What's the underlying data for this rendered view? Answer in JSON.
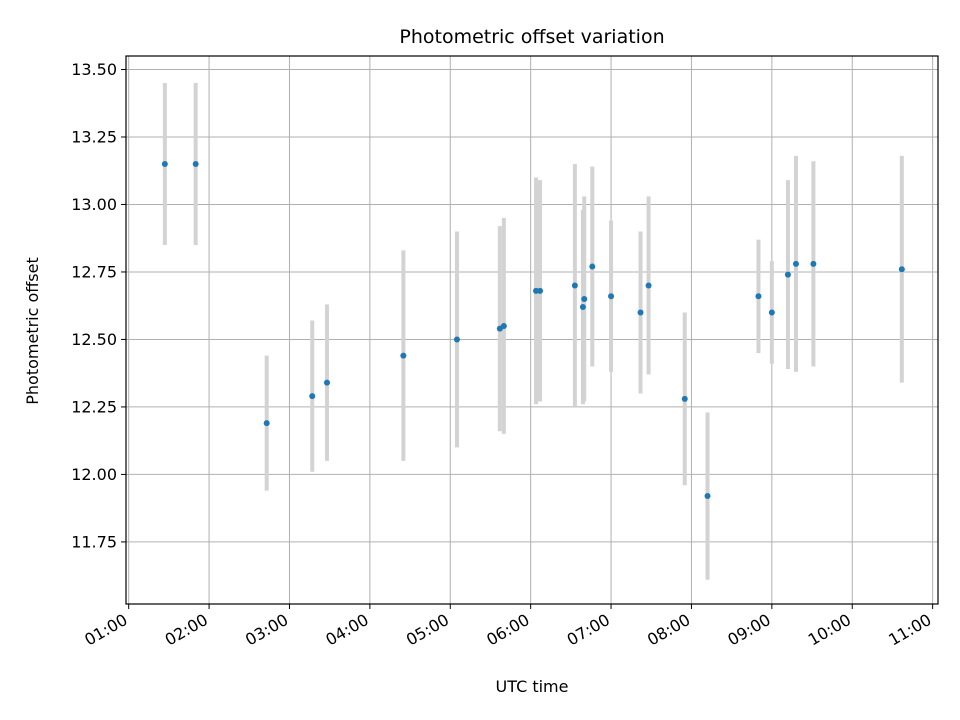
{
  "chart_data": {
    "type": "scatter",
    "title": "Photometric offset variation",
    "xlabel": "UTC time",
    "ylabel": "Photometric offset",
    "x_axis_kind": "time",
    "xlim": [
      "00:58",
      "11:04"
    ],
    "ylim": [
      11.52,
      13.55
    ],
    "x_ticks": [
      "01:00",
      "02:00",
      "03:00",
      "04:00",
      "05:00",
      "06:00",
      "07:00",
      "08:00",
      "09:00",
      "10:00",
      "11:00"
    ],
    "y_ticks": [
      11.75,
      12.0,
      12.25,
      12.5,
      12.75,
      13.0,
      13.25,
      13.5
    ],
    "y_tick_labels": [
      "11.75",
      "12.00",
      "12.25",
      "12.50",
      "12.75",
      "13.00",
      "13.25",
      "13.50"
    ],
    "grid": true,
    "point_color": "#1f77b4",
    "errorbar_color": "#d3d3d3",
    "points": [
      {
        "x": "01:27",
        "y": 13.15,
        "err": 0.3
      },
      {
        "x": "01:50",
        "y": 13.15,
        "err": 0.3
      },
      {
        "x": "02:43",
        "y": 12.19,
        "err": 0.25
      },
      {
        "x": "03:17",
        "y": 12.29,
        "err": 0.28
      },
      {
        "x": "03:28",
        "y": 12.34,
        "err": 0.29
      },
      {
        "x": "04:25",
        "y": 12.44,
        "err": 0.39
      },
      {
        "x": "05:05",
        "y": 12.5,
        "err": 0.4
      },
      {
        "x": "05:37",
        "y": 12.54,
        "err": 0.38
      },
      {
        "x": "05:40",
        "y": 12.55,
        "err": 0.4
      },
      {
        "x": "06:04",
        "y": 12.68,
        "err": 0.42
      },
      {
        "x": "06:07",
        "y": 12.68,
        "err": 0.41
      },
      {
        "x": "06:33",
        "y": 12.7,
        "err": 0.45
      },
      {
        "x": "06:39",
        "y": 12.62,
        "err": 0.36
      },
      {
        "x": "06:40",
        "y": 12.65,
        "err": 0.38
      },
      {
        "x": "06:46",
        "y": 12.77,
        "err": 0.37
      },
      {
        "x": "07:00",
        "y": 12.66,
        "err": 0.28
      },
      {
        "x": "07:22",
        "y": 12.6,
        "err": 0.3
      },
      {
        "x": "07:28",
        "y": 12.7,
        "err": 0.33
      },
      {
        "x": "07:55",
        "y": 12.28,
        "err": 0.32
      },
      {
        "x": "08:12",
        "y": 11.92,
        "err": 0.31
      },
      {
        "x": "08:50",
        "y": 12.66,
        "err": 0.21
      },
      {
        "x": "09:00",
        "y": 12.6,
        "err": 0.19
      },
      {
        "x": "09:12",
        "y": 12.74,
        "err": 0.35
      },
      {
        "x": "09:18",
        "y": 12.78,
        "err": 0.4
      },
      {
        "x": "09:31",
        "y": 12.78,
        "err": 0.38
      },
      {
        "x": "10:37",
        "y": 12.76,
        "err": 0.42
      }
    ]
  }
}
